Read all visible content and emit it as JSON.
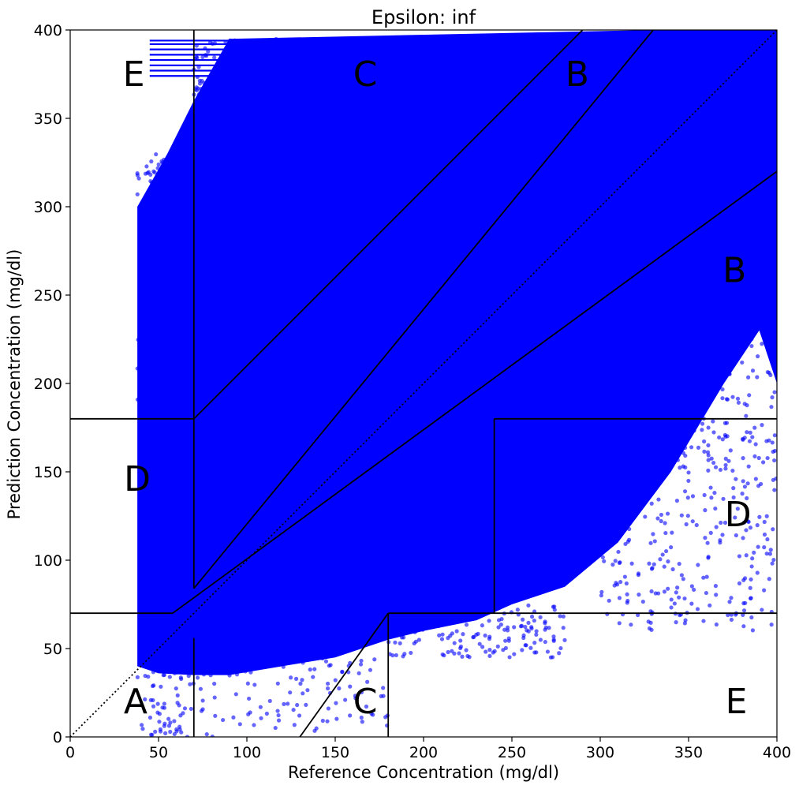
{
  "chart_data": {
    "type": "scatter",
    "title": "Epsilon: inf",
    "xlabel": "Reference Concentration (mg/dl)",
    "ylabel": "Prediction Concentration (mg/dl)",
    "xlim": [
      0,
      400
    ],
    "ylim": [
      0,
      400
    ],
    "xticks": [
      "0",
      "50",
      "100",
      "150",
      "200",
      "250",
      "300",
      "350",
      "400"
    ],
    "yticks": [
      "0",
      "50",
      "100",
      "150",
      "200",
      "250",
      "300",
      "350",
      "400"
    ],
    "grid": false,
    "marker_color": "#0000ff",
    "zone_line_color": "#000000",
    "zone_lines": [
      [
        [
          0,
          70
        ],
        [
          58,
          70
        ]
      ],
      [
        [
          58,
          70
        ],
        [
          400,
          320
        ]
      ],
      [
        [
          70,
          84
        ],
        [
          330,
          400
        ]
      ],
      [
        [
          70,
          84
        ],
        [
          70,
          400
        ]
      ],
      [
        [
          70,
          56
        ],
        [
          70,
          0
        ]
      ],
      [
        [
          0,
          180
        ],
        [
          70,
          180
        ]
      ],
      [
        [
          70,
          180
        ],
        [
          290,
          400
        ]
      ],
      [
        [
          130,
          0
        ],
        [
          180,
          70
        ]
      ],
      [
        [
          180,
          70
        ],
        [
          400,
          70
        ]
      ],
      [
        [
          180,
          70
        ],
        [
          180,
          0
        ]
      ],
      [
        [
          240,
          70
        ],
        [
          240,
          180
        ]
      ],
      [
        [
          240,
          180
        ],
        [
          400,
          180
        ]
      ]
    ],
    "identity_line": [
      [
        0,
        0
      ],
      [
        400,
        400
      ]
    ],
    "zone_labels": [
      {
        "text": "E",
        "x": 36,
        "y": 375
      },
      {
        "text": "C",
        "x": 167,
        "y": 375
      },
      {
        "text": "B",
        "x": 287,
        "y": 375
      },
      {
        "text": "B",
        "x": 376,
        "y": 264
      },
      {
        "text": "D",
        "x": 38,
        "y": 146
      },
      {
        "text": "D",
        "x": 378,
        "y": 126
      },
      {
        "text": "A",
        "x": 37,
        "y": 20
      },
      {
        "text": "C",
        "x": 167,
        "y": 20
      },
      {
        "text": "E",
        "x": 377,
        "y": 20
      }
    ],
    "scatter_bands": {
      "dense_region_polygon": [
        [
          38,
          40
        ],
        [
          38,
          300
        ],
        [
          55,
          330
        ],
        [
          70,
          360
        ],
        [
          90,
          395
        ],
        [
          330,
          400
        ],
        [
          400,
          400
        ],
        [
          400,
          200
        ],
        [
          390,
          230
        ],
        [
          370,
          200
        ],
        [
          340,
          150
        ],
        [
          310,
          110
        ],
        [
          280,
          85
        ],
        [
          250,
          75
        ],
        [
          230,
          66
        ],
        [
          200,
          60
        ],
        [
          180,
          55
        ],
        [
          150,
          45
        ],
        [
          120,
          40
        ],
        [
          90,
          35
        ],
        [
          70,
          35
        ],
        [
          50,
          36
        ]
      ],
      "horizontal_streak_y": [
        374,
        377,
        380,
        383,
        386,
        389,
        392,
        394
      ],
      "horizontal_streak_x_range": [
        45,
        400
      ]
    }
  }
}
